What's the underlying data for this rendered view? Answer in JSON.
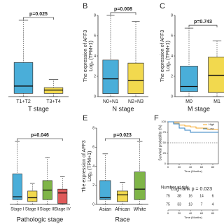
{
  "chart_data": [
    {
      "type": "box",
      "pvalue": "p=0.025",
      "xlabel": "T stage",
      "categories": [
        "T1+T2",
        "T3+T4"
      ],
      "colors": [
        "#4aaed9",
        "#f2d94e"
      ],
      "low": [
        0,
        0
      ],
      "q1": [
        0.4,
        0.4
      ],
      "median": [
        1.3,
        0.8
      ],
      "q3": [
        4.2,
        1.1
      ],
      "high": [
        9.4,
        2.1
      ],
      "ylim": [
        0,
        10
      ]
    },
    {
      "type": "box",
      "panel_label": "B",
      "pvalue": "p=0.008",
      "xlabel": "N stage",
      "ylabel": [
        "The expression of AFF3",
        "Log₂ (TPM+1)"
      ],
      "categories": [
        "N0+N1",
        "N2+N3"
      ],
      "colors": [
        "#4aaed9",
        "#f2d94e"
      ],
      "low": [
        0,
        0
      ],
      "q1": [
        0.3,
        0.3
      ],
      "median": [
        1.75,
        1.6
      ],
      "q3": [
        3.6,
        3.3
      ],
      "high": [
        8.0,
        7.4
      ],
      "ylim": [
        0,
        8
      ],
      "yticks": [
        0,
        2,
        4,
        6,
        8
      ]
    },
    {
      "type": "box",
      "panel_label": "C",
      "pvalue": "p=0.743",
      "xlabel": "M stage",
      "ylabel": [
        "The expression of AFF3",
        "Log₂ (TPM+1)"
      ],
      "categories": [
        "M0",
        "M1"
      ],
      "colors": [
        "#4aaed9",
        "#f2d94e"
      ],
      "low": [
        0,
        0
      ],
      "q1": [
        0.5,
        0.4
      ],
      "median": [
        1.0,
        2.1
      ],
      "q3": [
        3.0,
        3.9
      ],
      "high": [
        6.75,
        5.5
      ],
      "ylim": [
        0,
        8
      ],
      "yticks": [
        0,
        2,
        4,
        6,
        8
      ]
    },
    {
      "type": "box",
      "pvalue": "p=0.046",
      "xlabel": "Pathologic stage",
      "categories": [
        "Stage I",
        "Stage II",
        "Stage III",
        "Stage IV"
      ],
      "colors": [
        "#4aaed9",
        "#f2d94e",
        "#7fb548",
        "#e05a5a"
      ],
      "low": [
        0,
        0,
        0,
        0
      ],
      "q1": [
        0.5,
        0.3,
        0.5,
        0.1
      ],
      "median": [
        0.8,
        0.7,
        1.5,
        1.2
      ],
      "q3": [
        3.2,
        1.4,
        2.5,
        1.6
      ],
      "high": [
        6.6,
        2.2,
        4.9,
        2.9
      ],
      "ylim": [
        0,
        8
      ]
    },
    {
      "type": "box",
      "panel_label": "E",
      "pvalue": "p=0.023",
      "xlabel": "Race",
      "ylabel": [
        "The expression of AFF3",
        "Log₂ (TPM+1)"
      ],
      "categories": [
        "Asian",
        "African",
        "White"
      ],
      "colors": [
        "#4aaed9",
        "#f2d94e",
        "#7fb548"
      ],
      "low": [
        0,
        0,
        0
      ],
      "q1": [
        0.5,
        0.3,
        0.5
      ],
      "median": [
        0.7,
        1.0,
        1.6
      ],
      "q3": [
        2.5,
        1.4,
        3.4
      ],
      "high": [
        5.3,
        2.3,
        6.6
      ],
      "ylim": [
        0,
        8
      ],
      "yticks": [
        0,
        2,
        4,
        6,
        8
      ]
    },
    {
      "type": "km",
      "panel_label": "F",
      "ylabel": "Survival probability (%)",
      "xlabel": "Time (Months)",
      "annotation": "Log-rank p = 0.023",
      "risk_title": "Number at risk",
      "x": [
        0,
        10,
        20,
        30,
        40,
        50,
        60,
        70,
        80,
        90
      ],
      "series": [
        {
          "name": "High",
          "color": "#f5a623",
          "values": [
            100,
            97,
            92,
            90,
            88,
            85,
            85,
            82,
            82,
            82
          ],
          "at_risk": [
            75,
            38,
            16,
            14,
            6
          ]
        },
        {
          "name": "Low",
          "color": "#2f7fc1",
          "values": [
            100,
            95,
            85,
            80,
            75,
            75,
            75,
            75,
            75,
            75
          ],
          "at_risk": [
            75,
            33,
            13,
            7,
            4
          ]
        }
      ],
      "xlim": [
        0,
        90
      ],
      "ylim": [
        0,
        100
      ],
      "xticks": [
        0,
        20,
        40,
        60,
        80
      ],
      "yticks": [
        0,
        25,
        50,
        75,
        100
      ],
      "hline": 50
    }
  ]
}
